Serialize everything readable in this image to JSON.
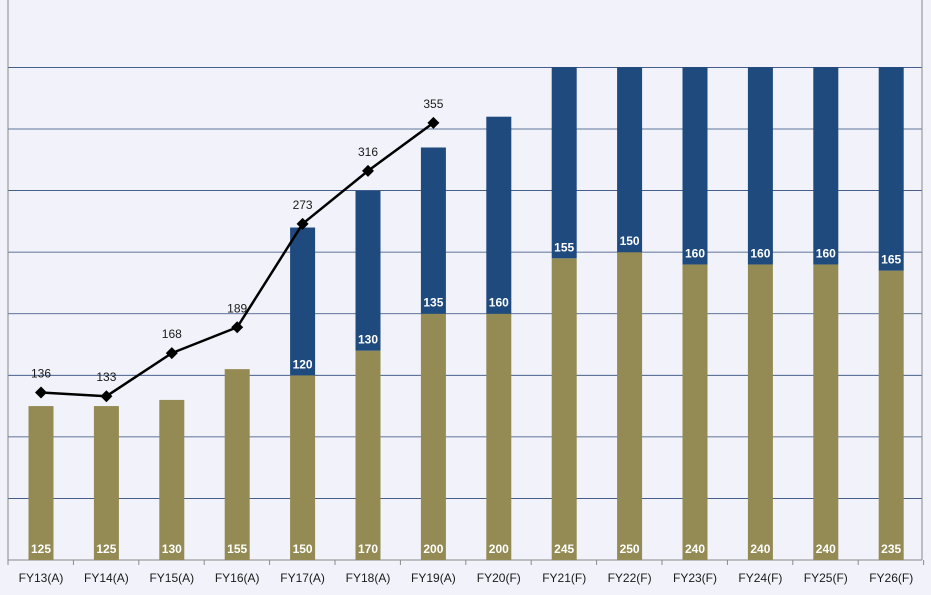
{
  "chart_data": {
    "type": "bar",
    "stacked": true,
    "categories": [
      "FY13(A)",
      "FY14(A)",
      "FY15(A)",
      "FY16(A)",
      "FY17(A)",
      "FY18(A)",
      "FY19(A)",
      "FY20(F)",
      "FY21(F)",
      "FY22(F)",
      "FY23(F)",
      "FY24(F)",
      "FY25(F)",
      "FY26(F)"
    ],
    "series": [
      {
        "values": [
          125,
          125,
          130,
          155,
          150,
          170,
          200,
          200,
          245,
          250,
          240,
          240,
          240,
          235
        ],
        "labels": [
          "125",
          "125",
          "130",
          "155",
          "150",
          "170",
          "200",
          "200",
          "245",
          "250",
          "240",
          "240",
          "240",
          "235"
        ],
        "color": "#938b53"
      },
      {
        "values": [
          null,
          null,
          null,
          null,
          120,
          130,
          135,
          160,
          155,
          150,
          160,
          160,
          160,
          165
        ],
        "labels": [
          "",
          "",
          "",
          "",
          "120",
          "130",
          "135",
          "160",
          "155",
          "150",
          "160",
          "160",
          "160",
          "165"
        ],
        "color": "#1f4a7e"
      },
      {
        "type": "line",
        "values": [
          136,
          133,
          168,
          189,
          273,
          316,
          355,
          null,
          null,
          null,
          null,
          null,
          null,
          null
        ],
        "labels": [
          "136",
          "133",
          "168",
          "189",
          "273",
          "316",
          "355",
          "",
          "",
          "",
          "",
          "",
          "",
          ""
        ],
        "color": "#000000",
        "marker": "diamond"
      }
    ],
    "ylim": [
      0,
      400
    ],
    "grid": true,
    "colors": {
      "background": "#f2f3fa",
      "grid": "#2e4a7a",
      "axis": "#8a8a8a"
    }
  }
}
